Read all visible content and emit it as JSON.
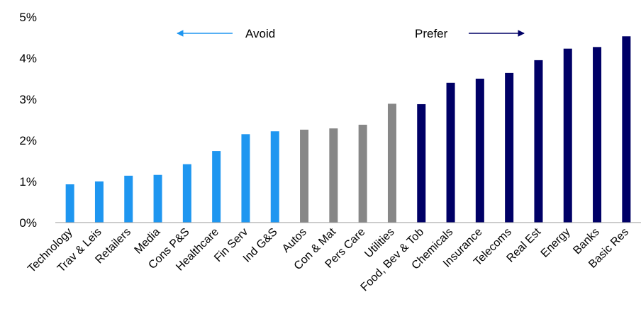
{
  "chart_data": {
    "type": "bar",
    "title": "",
    "xlabel": "",
    "ylabel": "",
    "ylim": [
      0,
      5
    ],
    "y_ticks": [
      "0%",
      "1%",
      "2%",
      "3%",
      "4%",
      "5%"
    ],
    "grid": false,
    "categories": [
      "Technology",
      "Trav & Leis",
      "Retailers",
      "Media",
      "Cons P&S",
      "Healthcare",
      "Fin Serv",
      "Ind G&S",
      "Autos",
      "Con & Mat",
      "Pers Care",
      "Utilities",
      "Food, Bev & Tob",
      "Chemicals",
      "Insurance",
      "Telecoms",
      "Real Est",
      "Energy",
      "Banks",
      "Basic Res"
    ],
    "values": [
      0.93,
      1.0,
      1.14,
      1.16,
      1.42,
      1.74,
      2.15,
      2.22,
      2.26,
      2.29,
      2.38,
      2.89,
      2.88,
      3.4,
      3.5,
      3.64,
      3.95,
      4.23,
      4.27,
      4.53
    ],
    "bar_groups": [
      "avoid",
      "avoid",
      "avoid",
      "avoid",
      "avoid",
      "avoid",
      "avoid",
      "avoid",
      "neutral",
      "neutral",
      "neutral",
      "neutral",
      "prefer",
      "prefer",
      "prefer",
      "prefer",
      "prefer",
      "prefer",
      "prefer",
      "prefer"
    ],
    "colors": {
      "avoid": "#1e96f0",
      "neutral": "#878787",
      "prefer": "#000066"
    },
    "annotations": {
      "avoid": {
        "text": "Avoid",
        "arrow_direction": "left",
        "color": "#1e96f0"
      },
      "prefer": {
        "text": "Prefer",
        "arrow_direction": "right",
        "color": "#000066"
      }
    }
  }
}
